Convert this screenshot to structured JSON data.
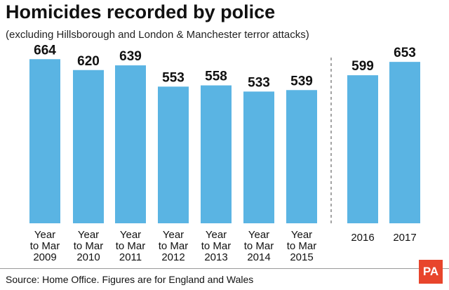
{
  "title": "Homicides recorded by police",
  "subtitle": "(excluding Hillsborough and London & Manchester terror attacks)",
  "source": "Source: Home Office. Figures are for England and Wales",
  "logo_text": "PA",
  "colors": {
    "bar": "#5ab4e3",
    "text": "#111111",
    "divider": "#666666"
  },
  "chart_data": {
    "type": "bar",
    "title": "Homicides recorded by police",
    "subtitle": "(excluding Hillsborough and London & Manchester terror attacks)",
    "xlabel": "",
    "ylabel": "",
    "ylim": [
      0,
      700
    ],
    "grid": false,
    "legend": "none",
    "groups": [
      {
        "categories": [
          [
            "Year",
            "to Mar",
            "2009"
          ],
          [
            "Year",
            "to Mar",
            "2010"
          ],
          [
            "Year",
            "to Mar",
            "2011"
          ],
          [
            "Year",
            "to Mar",
            "2012"
          ],
          [
            "Year",
            "to Mar",
            "2013"
          ],
          [
            "Year",
            "to Mar",
            "2014"
          ],
          [
            "Year",
            "to Mar",
            "2015"
          ]
        ],
        "values": [
          664,
          620,
          639,
          553,
          558,
          533,
          539
        ]
      },
      {
        "categories": [
          [
            "2016"
          ],
          [
            "2017"
          ]
        ],
        "values": [
          599,
          653
        ]
      }
    ]
  }
}
